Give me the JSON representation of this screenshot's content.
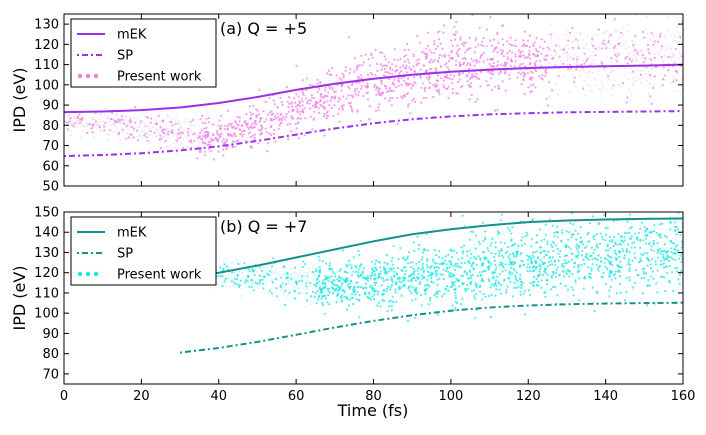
{
  "chart_data": [
    {
      "type": "line",
      "title": "(a) Q = +5",
      "xlabel": "",
      "ylabel": "IPD (eV)",
      "xlim": [
        0,
        160
      ],
      "ylim": [
        50,
        135
      ],
      "yticks": [
        50,
        60,
        70,
        80,
        90,
        100,
        110,
        120,
        130
      ],
      "xticks": [
        0,
        20,
        40,
        60,
        80,
        100,
        120,
        140,
        160
      ],
      "legend_position": "top-left",
      "colors": {
        "main": "#9b30e8",
        "scatter": "#ee7fe8",
        "scatter_faint": "#e8c8e6"
      },
      "series": [
        {
          "name": "mEK",
          "style": "solid",
          "x": [
            0,
            10,
            20,
            30,
            40,
            50,
            60,
            70,
            80,
            90,
            100,
            110,
            120,
            130,
            140,
            150,
            160
          ],
          "y": [
            86.5,
            86.8,
            87.5,
            88.8,
            91.0,
            94.0,
            97.5,
            100.5,
            103.0,
            105.0,
            106.5,
            107.5,
            108.3,
            108.8,
            109.2,
            109.5,
            110.0
          ]
        },
        {
          "name": "SP",
          "style": "dash-dot",
          "x": [
            0,
            10,
            20,
            30,
            40,
            50,
            60,
            70,
            80,
            90,
            100,
            110,
            120,
            130,
            140,
            150,
            160
          ],
          "y": [
            64.8,
            65.3,
            66.2,
            67.6,
            69.6,
            72.3,
            75.4,
            78.4,
            81.0,
            83.0,
            84.4,
            85.4,
            86.0,
            86.4,
            86.6,
            86.8,
            87.0
          ]
        },
        {
          "name": "Present work",
          "style": "scatter",
          "x": [
            0,
            20,
            30,
            40,
            50,
            60,
            70,
            80,
            90,
            100,
            110,
            120,
            130,
            140,
            150,
            160
          ],
          "y": [
            82,
            80,
            76,
            74,
            80,
            88,
            95,
            102,
            106,
            109,
            111,
            112,
            113,
            113,
            113,
            113
          ]
        }
      ]
    },
    {
      "type": "line",
      "title": "(b) Q = +7",
      "xlabel": "Time (fs)",
      "ylabel": "IPD (eV)",
      "xlim": [
        0,
        160
      ],
      "ylim": [
        65,
        150
      ],
      "yticks": [
        70,
        80,
        90,
        100,
        110,
        120,
        130,
        140,
        150
      ],
      "xticks": [
        0,
        20,
        40,
        60,
        80,
        100,
        120,
        140,
        160
      ],
      "legend_position": "top-left",
      "colors": {
        "main": "#17918b",
        "scatter": "#19e6e6",
        "scatter_faint": "#b4f0f0"
      },
      "series": [
        {
          "name": "mEK",
          "style": "solid",
          "x": [
            30,
            40,
            50,
            60,
            70,
            80,
            90,
            100,
            110,
            120,
            130,
            140,
            150,
            160
          ],
          "y": [
            117.5,
            120.0,
            123.5,
            127.5,
            131.5,
            135.5,
            139.0,
            141.5,
            143.5,
            145.0,
            145.8,
            146.3,
            146.6,
            146.8
          ]
        },
        {
          "name": "SP",
          "style": "dash-dot",
          "x": [
            30,
            40,
            50,
            60,
            70,
            80,
            90,
            100,
            110,
            120,
            130,
            140,
            150,
            160
          ],
          "y": [
            80.5,
            82.8,
            85.8,
            89.3,
            92.9,
            96.2,
            99.0,
            101.2,
            102.8,
            103.8,
            104.4,
            104.8,
            105.0,
            105.2
          ]
        },
        {
          "name": "Present work",
          "style": "scatter",
          "x": [
            30,
            40,
            50,
            60,
            70,
            80,
            90,
            100,
            110,
            120,
            130,
            140,
            150,
            160
          ],
          "y": [
            120,
            119,
            118,
            116,
            115,
            115,
            117,
            120,
            123,
            126,
            128,
            129,
            130,
            131
          ]
        }
      ]
    }
  ]
}
